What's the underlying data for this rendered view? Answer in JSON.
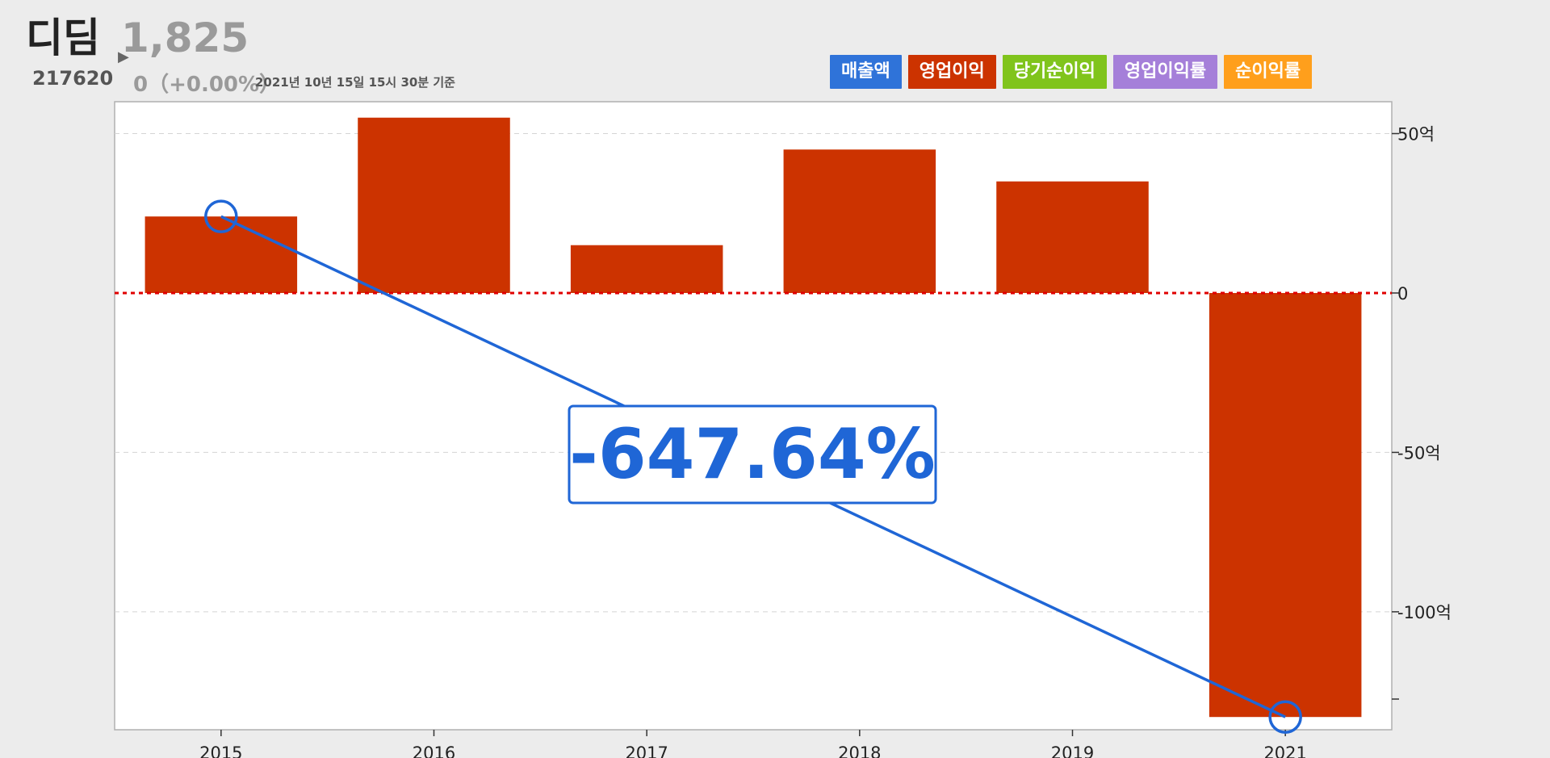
{
  "company": {
    "name": "디딤",
    "code": "217620",
    "price": "1,825",
    "change": "0（+0.00%）",
    "as_of": "2021년 10년 15일 15시 30분 기준"
  },
  "legend": [
    {
      "label": "매출액",
      "color": "#2f73d9"
    },
    {
      "label": "영업이익",
      "color": "#cc3300"
    },
    {
      "label": "당기순이익",
      "color": "#80c41c"
    },
    {
      "label": "영업이익률",
      "color": "#a57fd9"
    },
    {
      "label": "순이익률",
      "color": "#ff9f1c"
    }
  ],
  "annotation": {
    "text": "-647.64%",
    "color": "#1f66d6"
  },
  "chart_data": {
    "type": "bar",
    "categories": [
      "2015",
      "2016",
      "2017",
      "2018",
      "2019",
      "2021"
    ],
    "series": [
      {
        "values": [
          24,
          55,
          15,
          45,
          35,
          -133
        ],
        "color": "#cc3300"
      }
    ],
    "ylim": [
      -137,
      60
    ],
    "yticks": [
      {
        "value": 50,
        "label": "50억"
      },
      {
        "value": 0,
        "label": "0"
      },
      {
        "value": -50,
        "label": "-50억"
      },
      {
        "value": -100,
        "label": "-100억"
      }
    ],
    "zero_line_color": "#e00000",
    "grid": true,
    "axis_position": "right"
  }
}
